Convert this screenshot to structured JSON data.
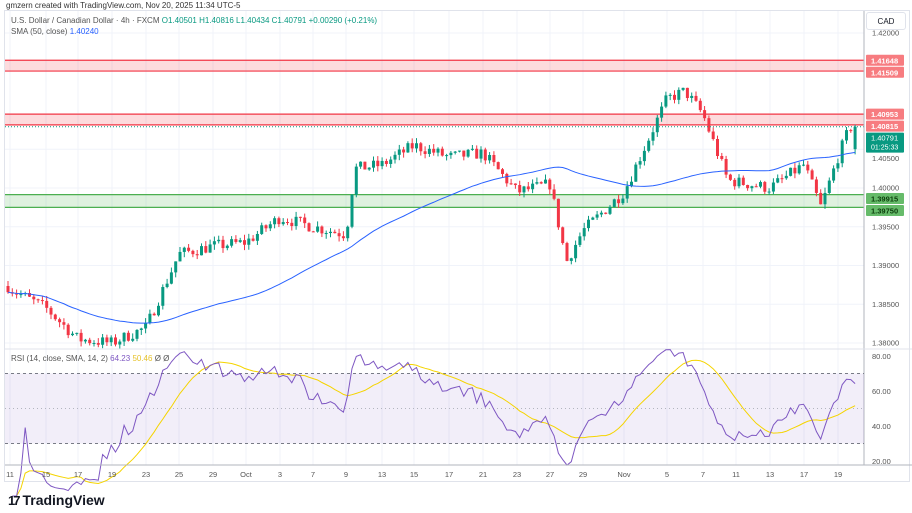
{
  "credit": "gmzern created with TradingView.com, Nov 20, 2025 11:34 UTC-5",
  "header": {
    "symbol": "U.S. Dollar / Canadian Dollar · 4h · FXCM",
    "open": "O1.40501",
    "high": "H1.40816",
    "low": "L1.40434",
    "close": "C1.40791",
    "change": "+0.00290 (+0.21%)",
    "sma_label": "SMA (50, close)",
    "sma_value": "1.40240"
  },
  "rsi_legend": {
    "label": "RSI (14, close, SMA, 14, 2)",
    "rsi_value": "64.23",
    "rsi_ma_value": "50.46",
    "extra1": "Ø",
    "extra2": "Ø"
  },
  "currency": "CAD",
  "brand": "TradingView",
  "colors": {
    "up": "#089981",
    "down": "#f23645",
    "sma": "#2962ff",
    "rsi": "#7e57c2",
    "rsi_ma": "#f5d400",
    "resistance": "#f23645",
    "support": "#4caf50"
  },
  "price_badge": {
    "value": "1.40791",
    "countdown": "01:25:33"
  },
  "chart_data": [
    {
      "type": "candlestick",
      "symbol": "USDCAD",
      "timeframe": "4h",
      "ylim": [
        1.3785,
        1.4225
      ],
      "yticks": [
        "1.42000",
        "1.40500",
        "1.40000",
        "1.39500",
        "1.39000",
        "1.38500",
        "1.38000"
      ],
      "xticks": [
        [
          "11",
          "Sep 11"
        ],
        [
          "15",
          "Sep 15"
        ],
        [
          "17",
          "Sep 17"
        ],
        [
          "19",
          "Sep 19"
        ],
        [
          "23",
          "Sep 23"
        ],
        [
          "25",
          "Sep 25"
        ],
        [
          "29",
          "Sep 29"
        ],
        [
          "Oct",
          "Oct 1"
        ],
        [
          "3",
          "Oct 3"
        ],
        [
          "7",
          "Oct 7"
        ],
        [
          "9",
          "Oct 9"
        ],
        [
          "13",
          "Oct 13"
        ],
        [
          "15",
          "Oct 15"
        ],
        [
          "17",
          "Oct 17"
        ],
        [
          "21",
          "Oct 21"
        ],
        [
          "23",
          "Oct 23"
        ],
        [
          "27",
          "Oct 27"
        ],
        [
          "29",
          "Oct 29"
        ],
        [
          "Nov",
          "Nov 3"
        ],
        [
          "5",
          "Nov 5"
        ],
        [
          "7",
          "Nov 7"
        ],
        [
          "11",
          "Nov 11"
        ],
        [
          "13",
          "Nov 13"
        ],
        [
          "17",
          "Nov 17"
        ],
        [
          "19",
          "Nov 19"
        ]
      ],
      "price_path": [
        [
          "Sep 10",
          1.3885
        ],
        [
          "Sep 11",
          1.387
        ],
        [
          "Sep 15",
          1.3845
        ],
        [
          "Sep 17",
          1.3805
        ],
        [
          "Sep 19",
          1.38
        ],
        [
          "Sep 23",
          1.382
        ],
        [
          "Sep 25",
          1.3915
        ],
        [
          "Sep 29",
          1.3925
        ],
        [
          "Oct 1",
          1.393
        ],
        [
          "Oct 3",
          1.3962
        ],
        [
          "Oct 7",
          1.395
        ],
        [
          "Oct 9",
          1.394
        ],
        [
          "Oct 10",
          1.4025
        ],
        [
          "Oct 13",
          1.403
        ],
        [
          "Oct 15",
          1.4055
        ],
        [
          "Oct 17",
          1.404
        ],
        [
          "Oct 21",
          1.4045
        ],
        [
          "Oct 23",
          1.3995
        ],
        [
          "Oct 27",
          1.4005
        ],
        [
          "Oct 28",
          1.3905
        ],
        [
          "Oct 29",
          1.3945
        ],
        [
          "Nov 3",
          1.3995
        ],
        [
          "Nov 5",
          1.4115
        ],
        [
          "Nov 6",
          1.4125
        ],
        [
          "Nov 7",
          1.4095
        ],
        [
          "Nov 10",
          1.401
        ],
        [
          "Nov 13",
          1.4
        ],
        [
          "Nov 17",
          1.403
        ],
        [
          "Nov 18",
          1.3975
        ],
        [
          "Nov 19",
          1.404
        ],
        [
          "Nov 20",
          1.40791
        ]
      ],
      "zones": [
        {
          "type": "resistance",
          "top": "1.41648",
          "bottom": "1.41509"
        },
        {
          "type": "resistance",
          "top": "1.40953",
          "bottom": "1.40815"
        },
        {
          "type": "support",
          "top": "1.39915",
          "bottom": "1.39750"
        }
      ],
      "sma_period": 50
    },
    {
      "type": "line",
      "name": "RSI",
      "ylim": [
        15,
        85
      ],
      "yticks": [
        "80.00",
        "60.00",
        "40.00",
        "20.00"
      ],
      "bands": [
        70,
        30
      ],
      "last_rsi": 64.23,
      "last_ma": 50.46
    }
  ]
}
